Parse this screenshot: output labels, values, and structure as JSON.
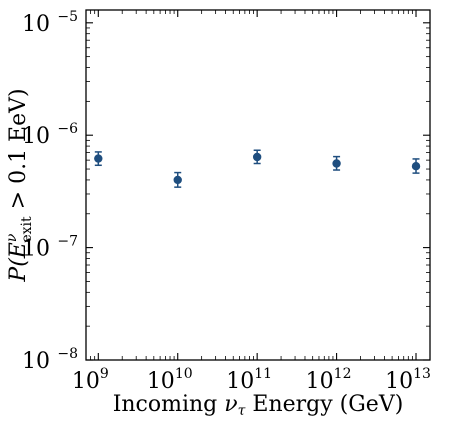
{
  "chart_data": {
    "type": "scatter",
    "x_scale": "log",
    "y_scale": "log",
    "xlim": [
      700000000,
      15000000000000
    ],
    "ylim": [
      1e-08,
      1.3e-05
    ],
    "x_ticks": [
      {
        "value": 1000000000.0,
        "base": "10",
        "exp": "9"
      },
      {
        "value": 10000000000.0,
        "base": "10",
        "exp": "10"
      },
      {
        "value": 100000000000.0,
        "base": "10",
        "exp": "11"
      },
      {
        "value": 1000000000000.0,
        "base": "10",
        "exp": "12"
      },
      {
        "value": 10000000000000.0,
        "base": "10",
        "exp": "13"
      }
    ],
    "y_ticks": [
      {
        "value": 1e-08,
        "base": "10",
        "exp": "−8"
      },
      {
        "value": 1e-07,
        "base": "10",
        "exp": "−7"
      },
      {
        "value": 1e-06,
        "base": "10",
        "exp": "−6"
      },
      {
        "value": 1e-05,
        "base": "10",
        "exp": "−5"
      }
    ],
    "xlabel": {
      "before": "Incoming ",
      "symbol": "ν",
      "subscript": "τ",
      "after": " Energy (GeV)"
    },
    "ylabel": {
      "prefix": "P(",
      "symbol": "E",
      "superscript": "ν",
      "subscript": "exit",
      "suffix": " > 0.1 EeV)"
    },
    "points": [
      {
        "x": 1000000000.0,
        "y": 6.2e-07,
        "y_low": 5.4e-07,
        "y_high": 7.1e-07
      },
      {
        "x": 10000000000.0,
        "y": 4e-07,
        "y_low": 3.45e-07,
        "y_high": 4.65e-07
      },
      {
        "x": 100000000000.0,
        "y": 6.4e-07,
        "y_low": 5.6e-07,
        "y_high": 7.35e-07
      },
      {
        "x": 1000000000000.0,
        "y": 5.6e-07,
        "y_low": 4.9e-07,
        "y_high": 6.45e-07
      },
      {
        "x": 10000000000000.0,
        "y": 5.3e-07,
        "y_low": 4.6e-07,
        "y_high": 6.15e-07
      }
    ],
    "marker_color": "#1f4e7f",
    "grid": false,
    "legend": false
  }
}
